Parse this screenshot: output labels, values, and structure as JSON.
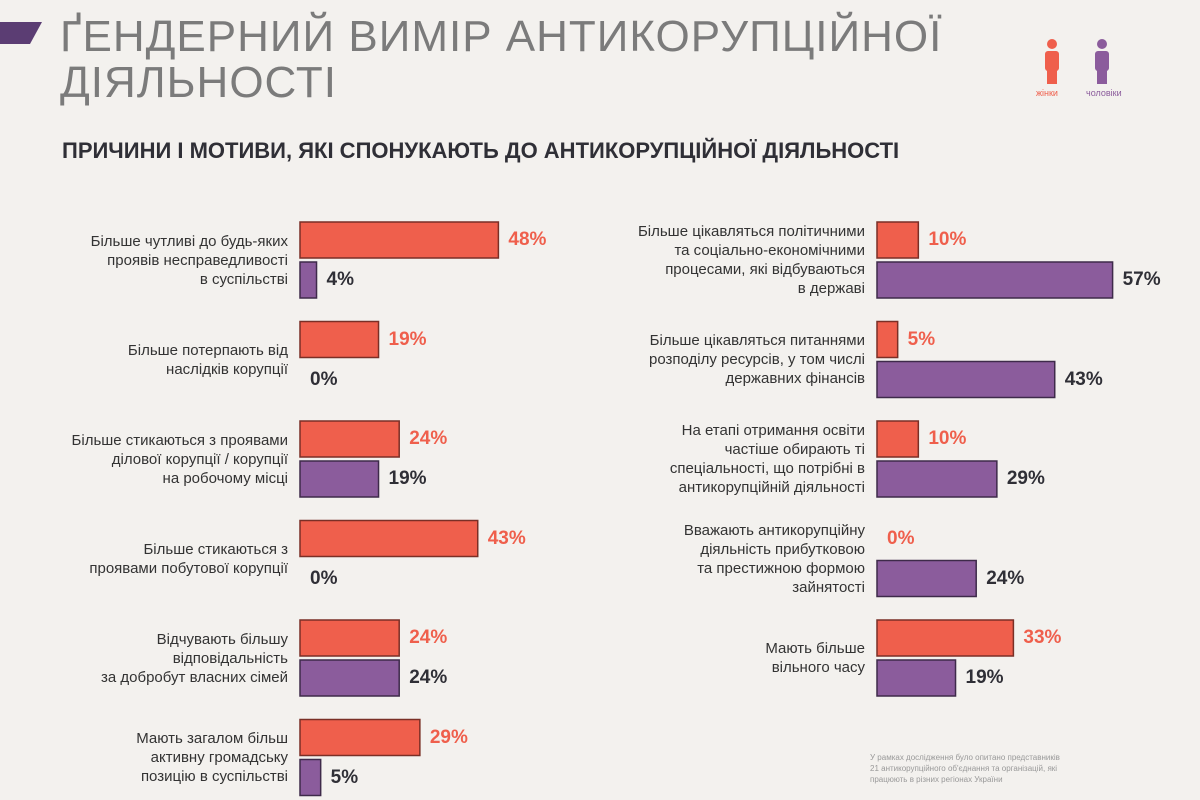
{
  "header": {
    "title": "ҐЕНДЕРНИЙ ВИМІР АНТИКОРУПЦІЙНОЇ\nДІЯЛЬНОСТІ"
  },
  "chart_data": {
    "type": "bar",
    "orientation": "horizontal",
    "title": "ПРИЧИНИ І МОТИВИ, ЯКІ СПОНУКАЮТЬ ДО АНТИКОРУПЦІЙНОЇ ДІЯЛЬНОСТІ",
    "categories": [
      "Більше чутливі до будь-яких\nпроявів несправедливості\nв суспільстві",
      "Більше потерпають від\nнаслідків корупції",
      "Більше стикаються з проявами\nділової корупції / корупції\nна робочому місці",
      "Більше стикаються з\nпроявами побутової корупції",
      "Відчувають більшу\nвідповідальність\nза добробут власних сімей",
      "Мають загалом більш\nактивну громадську\nпозицію в суспільстві",
      "Більше цікавляться політичними\nта соціально-економічними\nпроцесами, які відбуваються\nв державі",
      "Більше цікавляться питаннями\nрозподілу ресурсів, у том числі\nдержавних фінансів",
      "На етапі отримання освіти\nчастіше обирають ті\nспеціальності, що потрібні в\nантикорупційній діяльності",
      "Вважають антикорупційну\nдіяльність прибутковою\nта престижною формою\nзайнятості",
      "Мають більше\nвільного часу"
    ],
    "series": [
      {
        "name": "жінки",
        "color": "#ef5f4c",
        "values": [
          48,
          19,
          24,
          43,
          24,
          29,
          10,
          5,
          10,
          0,
          33
        ],
        "value_labels": [
          "48%",
          "19%",
          "24%",
          "43%",
          "24%",
          "29%",
          "10%",
          "5%",
          "10%",
          "0%",
          "33%"
        ]
      },
      {
        "name": "чоловіки",
        "color": "#8b5c9c",
        "values": [
          4,
          0,
          19,
          0,
          24,
          5,
          57,
          43,
          29,
          24,
          19
        ],
        "value_labels": [
          "4%",
          "0%",
          "19%",
          "0%",
          "24%",
          "5%",
          "57%",
          "43%",
          "29%",
          "24%",
          "19%"
        ]
      }
    ],
    "xlim": [
      0,
      60
    ],
    "footnote": "У рамках дослідження було опитано представників\n21 антикорупційного об'єднання та організацій, які\nпрацюють в різних регіонах України"
  }
}
